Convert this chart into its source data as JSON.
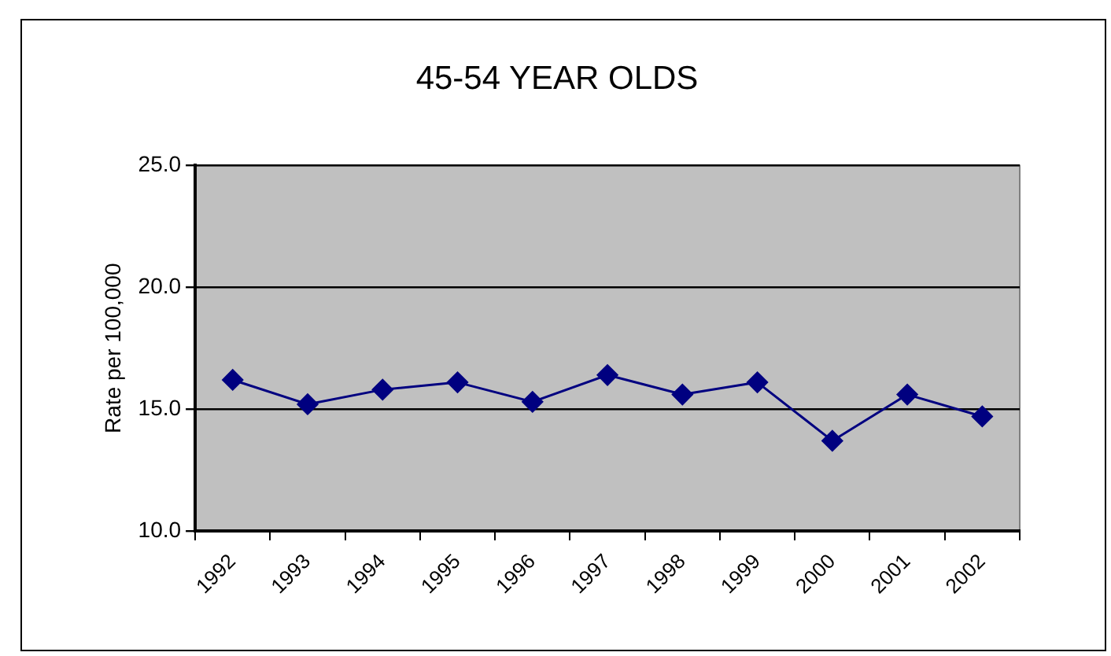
{
  "chart_data": {
    "type": "line",
    "title": "45-54 YEAR OLDS",
    "ylabel": "Rate per 100,000",
    "categories": [
      "1992",
      "1993",
      "1994",
      "1995",
      "1996",
      "1997",
      "1998",
      "1999",
      "2000",
      "2001",
      "2002"
    ],
    "series": [
      {
        "color": "#000080",
        "values": [
          16.2,
          15.2,
          15.8,
          16.1,
          15.3,
          16.4,
          15.6,
          16.1,
          13.7,
          15.6,
          14.7
        ]
      }
    ],
    "ylim": [
      10,
      25
    ],
    "yticks": [
      {
        "value": 10,
        "label": "10.0"
      },
      {
        "value": 15,
        "label": "15.0"
      },
      {
        "value": 20,
        "label": "20.0"
      },
      {
        "value": 25,
        "label": "25.0"
      }
    ],
    "grid": "y",
    "legend": false,
    "marker": "diamond",
    "line_style": "solid"
  }
}
